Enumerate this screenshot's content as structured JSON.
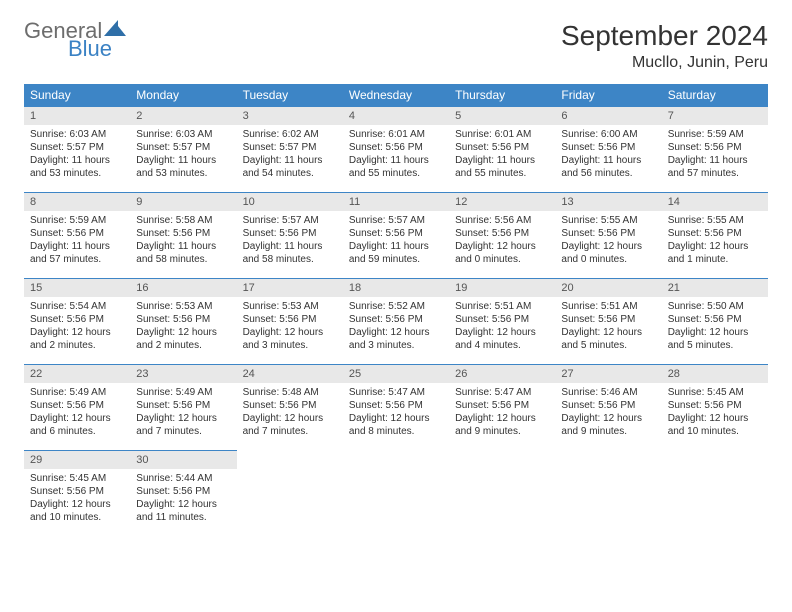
{
  "logo": {
    "text1": "General",
    "text2": "Blue"
  },
  "title": "September 2024",
  "location": "Mucllo, Junin, Peru",
  "colors": {
    "header_bg": "#3d85c6",
    "header_fg": "#ffffff",
    "daynum_bg": "#e8e8e8",
    "rule": "#3d85c6",
    "logo_gray": "#6d6d6d",
    "logo_blue": "#3b82c4"
  },
  "weekdays": [
    "Sunday",
    "Monday",
    "Tuesday",
    "Wednesday",
    "Thursday",
    "Friday",
    "Saturday"
  ],
  "days": [
    {
      "n": "1",
      "sr": "Sunrise: 6:03 AM",
      "ss": "Sunset: 5:57 PM",
      "dl1": "Daylight: 11 hours",
      "dl2": "and 53 minutes."
    },
    {
      "n": "2",
      "sr": "Sunrise: 6:03 AM",
      "ss": "Sunset: 5:57 PM",
      "dl1": "Daylight: 11 hours",
      "dl2": "and 53 minutes."
    },
    {
      "n": "3",
      "sr": "Sunrise: 6:02 AM",
      "ss": "Sunset: 5:57 PM",
      "dl1": "Daylight: 11 hours",
      "dl2": "and 54 minutes."
    },
    {
      "n": "4",
      "sr": "Sunrise: 6:01 AM",
      "ss": "Sunset: 5:56 PM",
      "dl1": "Daylight: 11 hours",
      "dl2": "and 55 minutes."
    },
    {
      "n": "5",
      "sr": "Sunrise: 6:01 AM",
      "ss": "Sunset: 5:56 PM",
      "dl1": "Daylight: 11 hours",
      "dl2": "and 55 minutes."
    },
    {
      "n": "6",
      "sr": "Sunrise: 6:00 AM",
      "ss": "Sunset: 5:56 PM",
      "dl1": "Daylight: 11 hours",
      "dl2": "and 56 minutes."
    },
    {
      "n": "7",
      "sr": "Sunrise: 5:59 AM",
      "ss": "Sunset: 5:56 PM",
      "dl1": "Daylight: 11 hours",
      "dl2": "and 57 minutes."
    },
    {
      "n": "8",
      "sr": "Sunrise: 5:59 AM",
      "ss": "Sunset: 5:56 PM",
      "dl1": "Daylight: 11 hours",
      "dl2": "and 57 minutes."
    },
    {
      "n": "9",
      "sr": "Sunrise: 5:58 AM",
      "ss": "Sunset: 5:56 PM",
      "dl1": "Daylight: 11 hours",
      "dl2": "and 58 minutes."
    },
    {
      "n": "10",
      "sr": "Sunrise: 5:57 AM",
      "ss": "Sunset: 5:56 PM",
      "dl1": "Daylight: 11 hours",
      "dl2": "and 58 minutes."
    },
    {
      "n": "11",
      "sr": "Sunrise: 5:57 AM",
      "ss": "Sunset: 5:56 PM",
      "dl1": "Daylight: 11 hours",
      "dl2": "and 59 minutes."
    },
    {
      "n": "12",
      "sr": "Sunrise: 5:56 AM",
      "ss": "Sunset: 5:56 PM",
      "dl1": "Daylight: 12 hours",
      "dl2": "and 0 minutes."
    },
    {
      "n": "13",
      "sr": "Sunrise: 5:55 AM",
      "ss": "Sunset: 5:56 PM",
      "dl1": "Daylight: 12 hours",
      "dl2": "and 0 minutes."
    },
    {
      "n": "14",
      "sr": "Sunrise: 5:55 AM",
      "ss": "Sunset: 5:56 PM",
      "dl1": "Daylight: 12 hours",
      "dl2": "and 1 minute."
    },
    {
      "n": "15",
      "sr": "Sunrise: 5:54 AM",
      "ss": "Sunset: 5:56 PM",
      "dl1": "Daylight: 12 hours",
      "dl2": "and 2 minutes."
    },
    {
      "n": "16",
      "sr": "Sunrise: 5:53 AM",
      "ss": "Sunset: 5:56 PM",
      "dl1": "Daylight: 12 hours",
      "dl2": "and 2 minutes."
    },
    {
      "n": "17",
      "sr": "Sunrise: 5:53 AM",
      "ss": "Sunset: 5:56 PM",
      "dl1": "Daylight: 12 hours",
      "dl2": "and 3 minutes."
    },
    {
      "n": "18",
      "sr": "Sunrise: 5:52 AM",
      "ss": "Sunset: 5:56 PM",
      "dl1": "Daylight: 12 hours",
      "dl2": "and 3 minutes."
    },
    {
      "n": "19",
      "sr": "Sunrise: 5:51 AM",
      "ss": "Sunset: 5:56 PM",
      "dl1": "Daylight: 12 hours",
      "dl2": "and 4 minutes."
    },
    {
      "n": "20",
      "sr": "Sunrise: 5:51 AM",
      "ss": "Sunset: 5:56 PM",
      "dl1": "Daylight: 12 hours",
      "dl2": "and 5 minutes."
    },
    {
      "n": "21",
      "sr": "Sunrise: 5:50 AM",
      "ss": "Sunset: 5:56 PM",
      "dl1": "Daylight: 12 hours",
      "dl2": "and 5 minutes."
    },
    {
      "n": "22",
      "sr": "Sunrise: 5:49 AM",
      "ss": "Sunset: 5:56 PM",
      "dl1": "Daylight: 12 hours",
      "dl2": "and 6 minutes."
    },
    {
      "n": "23",
      "sr": "Sunrise: 5:49 AM",
      "ss": "Sunset: 5:56 PM",
      "dl1": "Daylight: 12 hours",
      "dl2": "and 7 minutes."
    },
    {
      "n": "24",
      "sr": "Sunrise: 5:48 AM",
      "ss": "Sunset: 5:56 PM",
      "dl1": "Daylight: 12 hours",
      "dl2": "and 7 minutes."
    },
    {
      "n": "25",
      "sr": "Sunrise: 5:47 AM",
      "ss": "Sunset: 5:56 PM",
      "dl1": "Daylight: 12 hours",
      "dl2": "and 8 minutes."
    },
    {
      "n": "26",
      "sr": "Sunrise: 5:47 AM",
      "ss": "Sunset: 5:56 PM",
      "dl1": "Daylight: 12 hours",
      "dl2": "and 9 minutes."
    },
    {
      "n": "27",
      "sr": "Sunrise: 5:46 AM",
      "ss": "Sunset: 5:56 PM",
      "dl1": "Daylight: 12 hours",
      "dl2": "and 9 minutes."
    },
    {
      "n": "28",
      "sr": "Sunrise: 5:45 AM",
      "ss": "Sunset: 5:56 PM",
      "dl1": "Daylight: 12 hours",
      "dl2": "and 10 minutes."
    },
    {
      "n": "29",
      "sr": "Sunrise: 5:45 AM",
      "ss": "Sunset: 5:56 PM",
      "dl1": "Daylight: 12 hours",
      "dl2": "and 10 minutes."
    },
    {
      "n": "30",
      "sr": "Sunrise: 5:44 AM",
      "ss": "Sunset: 5:56 PM",
      "dl1": "Daylight: 12 hours",
      "dl2": "and 11 minutes."
    }
  ]
}
